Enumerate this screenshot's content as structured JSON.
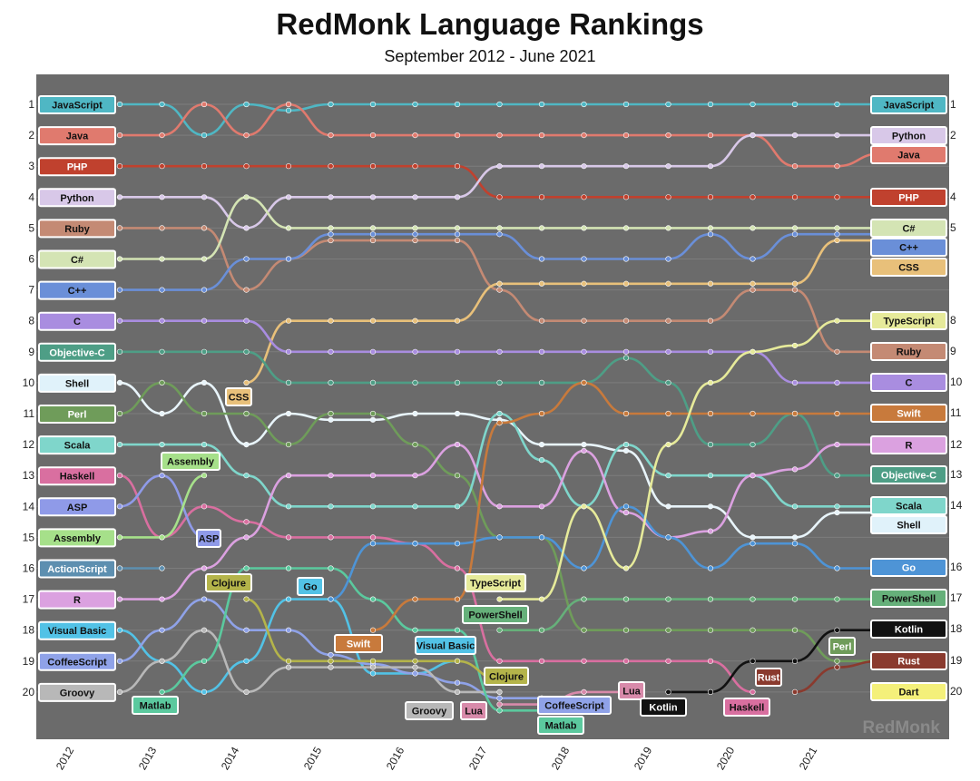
{
  "title": "RedMonk Language Rankings",
  "subtitle": "September 2012 - June 2021",
  "brand": "RedMonk",
  "chart_data": {
    "type": "line",
    "title": "RedMonk Language Rankings",
    "subtitle": "September 2012 - June 2021",
    "x": [
      "2012-09",
      "2013-01",
      "2013-06",
      "2014-01",
      "2014-06",
      "2015-01",
      "2015-06",
      "2016-01",
      "2016-06",
      "2017-01",
      "2017-06",
      "2018-01",
      "2018-06",
      "2019-01",
      "2019-06",
      "2020-01",
      "2020-06",
      "2021-01",
      "2021-06"
    ],
    "x_ticks": [
      "2012",
      "2013",
      "2014",
      "2015",
      "2016",
      "2017",
      "2018",
      "2019",
      "2020",
      "2021"
    ],
    "y_ticks": [
      1,
      2,
      3,
      4,
      5,
      6,
      7,
      8,
      9,
      10,
      11,
      12,
      13,
      14,
      15,
      16,
      17,
      18,
      19,
      20
    ],
    "ylim": [
      1,
      20
    ],
    "y_inverted": true,
    "background": "#6b6b6b",
    "series": [
      {
        "name": "JavaScript",
        "color": "#4fb7c4",
        "values": [
          1,
          1,
          2,
          1,
          1.2,
          1,
          1,
          1,
          1,
          1,
          1,
          1,
          1,
          1,
          1,
          1,
          1,
          1,
          1
        ]
      },
      {
        "name": "Java",
        "color": "#e07a6e",
        "values": [
          2,
          2,
          1,
          2,
          1,
          2,
          2,
          2,
          2,
          2,
          2,
          2,
          2,
          2,
          2,
          2,
          3,
          3,
          2.6
        ]
      },
      {
        "name": "PHP",
        "color": "#c0412e",
        "values": [
          3,
          3,
          3,
          3,
          3,
          3,
          3,
          3,
          3,
          4,
          4,
          4,
          4,
          4,
          4,
          4,
          4,
          4,
          4
        ]
      },
      {
        "name": "Python",
        "color": "#d8c8e8",
        "values": [
          4,
          4,
          4,
          5,
          4,
          4,
          4,
          4,
          4,
          3,
          3,
          3,
          3,
          3,
          3,
          2,
          2,
          2,
          2
        ]
      },
      {
        "name": "Ruby",
        "color": "#c48a74",
        "values": [
          5,
          5,
          5,
          7,
          6,
          5.4,
          5.4,
          5.4,
          5.4,
          7,
          8,
          8,
          8,
          8,
          8,
          7,
          7,
          9,
          9
        ]
      },
      {
        "name": "C#",
        "color": "#d4e4b4",
        "values": [
          6,
          6,
          6,
          4,
          5,
          5,
          5,
          5,
          5,
          5,
          5,
          5,
          5,
          5,
          5,
          5,
          5,
          5,
          5
        ]
      },
      {
        "name": "C++",
        "color": "#6a8fd8",
        "values": [
          7,
          7,
          7,
          6,
          6,
          5.2,
          5.2,
          5.2,
          5.2,
          5.2,
          6,
          6,
          6,
          6,
          5.2,
          6,
          5.2,
          5.2,
          5.2
        ]
      },
      {
        "name": "CSS",
        "color": "#e8c07a",
        "values": [
          null,
          null,
          null,
          10,
          8,
          8,
          8,
          8,
          8,
          6.8,
          6.8,
          6.8,
          6.8,
          6.8,
          6.8,
          6.8,
          6.8,
          5.4,
          5.4
        ]
      },
      {
        "name": "C",
        "color": "#a98de0",
        "values": [
          8,
          8,
          8,
          8,
          9,
          9,
          9,
          9,
          9,
          9,
          9,
          9,
          9,
          9,
          9,
          9,
          10,
          10,
          10
        ]
      },
      {
        "name": "Objective-C",
        "color": "#4e9e86",
        "values": [
          9,
          9,
          9,
          9,
          10,
          10,
          10,
          10,
          10,
          10,
          10,
          10,
          9.2,
          10,
          12,
          12,
          11,
          13,
          13
        ]
      },
      {
        "name": "Shell",
        "color": "#e8f4fa",
        "values": [
          10,
          11,
          10,
          12,
          11,
          11.2,
          11.2,
          11,
          11,
          11.2,
          12,
          12,
          12.2,
          14,
          14,
          15,
          15,
          14.2,
          14.2
        ]
      },
      {
        "name": "Perl",
        "color": "#6f9c5a",
        "values": [
          11,
          10,
          11,
          11,
          12,
          11,
          11,
          12,
          13,
          15,
          15,
          18,
          18,
          18,
          18,
          18,
          18,
          19,
          19
        ]
      },
      {
        "name": "Scala",
        "color": "#7fd6cb",
        "values": [
          12,
          12,
          12,
          13,
          14,
          14,
          14,
          14,
          14,
          11,
          12.5,
          14,
          12,
          13,
          13,
          13,
          14,
          14,
          14
        ]
      },
      {
        "name": "Haskell",
        "color": "#d96fa0",
        "values": [
          13,
          15,
          14,
          14.5,
          15,
          15,
          15,
          15.2,
          16,
          19,
          19,
          19,
          19,
          19,
          19,
          20,
          null,
          null,
          null
        ]
      },
      {
        "name": "ASP",
        "color": "#8f9ae8",
        "values": [
          14,
          13,
          15,
          null,
          null,
          null,
          null,
          null,
          null,
          null,
          null,
          null,
          null,
          null,
          null,
          null,
          null,
          null,
          null
        ]
      },
      {
        "name": "Assembly",
        "color": "#a6e08a",
        "values": [
          15,
          15,
          13,
          null,
          null,
          null,
          null,
          null,
          null,
          null,
          null,
          null,
          null,
          null,
          null,
          null,
          null,
          null,
          null
        ]
      },
      {
        "name": "ActionScript",
        "color": "#5d8fb0",
        "values": [
          16,
          16,
          null,
          null,
          null,
          null,
          null,
          null,
          null,
          null,
          null,
          null,
          null,
          null,
          null,
          null,
          null,
          null,
          null
        ]
      },
      {
        "name": "R",
        "color": "#dba1e0",
        "values": [
          17,
          17,
          16,
          15,
          13,
          13,
          13,
          13,
          12,
          14,
          14,
          12.2,
          14.2,
          15,
          14.8,
          13,
          12.8,
          12,
          12
        ]
      },
      {
        "name": "Visual Basic",
        "color": "#52c2e6",
        "values": [
          18,
          19,
          20,
          19,
          17,
          17,
          19.4,
          19.4,
          19,
          null,
          null,
          null,
          null,
          null,
          null,
          null,
          null,
          null,
          null
        ]
      },
      {
        "name": "CoffeeScript",
        "color": "#8fa2e8",
        "values": [
          19,
          18,
          17,
          18,
          18,
          18.8,
          19.1,
          19.4,
          19.7,
          20.2,
          20.2,
          null,
          null,
          null,
          null,
          null,
          null,
          null,
          null
        ]
      },
      {
        "name": "Groovy",
        "color": "#b8b8b8",
        "values": [
          20,
          19,
          18,
          20,
          19.2,
          19.2,
          19.2,
          19.2,
          20,
          20,
          null,
          null,
          null,
          null,
          null,
          null,
          null,
          null,
          null
        ]
      },
      {
        "name": "Matlab",
        "color": "#5bc99e",
        "values": [
          null,
          20,
          19,
          16,
          16,
          16,
          17,
          18,
          18,
          20.6,
          20.6,
          null,
          null,
          null,
          null,
          null,
          null,
          null,
          null
        ]
      },
      {
        "name": "Clojure",
        "color": "#b4b44a",
        "values": [
          null,
          null,
          null,
          17,
          19,
          19,
          19,
          19,
          19,
          19.6,
          null,
          null,
          null,
          null,
          null,
          null,
          null,
          null,
          null
        ]
      },
      {
        "name": "Go",
        "color": "#4e94d6",
        "values": [
          null,
          null,
          null,
          null,
          null,
          17,
          15.2,
          15.2,
          15.2,
          15,
          15,
          16,
          14,
          15,
          16,
          15.2,
          15.2,
          16,
          16
        ]
      },
      {
        "name": "Swift",
        "color": "#c87a3c",
        "values": [
          null,
          null,
          null,
          null,
          null,
          null,
          18,
          17,
          17,
          11.3,
          11,
          10,
          11,
          11,
          11,
          11,
          11,
          11,
          11
        ]
      },
      {
        "name": "TypeScript",
        "color": "#e6ea9a",
        "values": [
          null,
          null,
          null,
          null,
          null,
          null,
          null,
          null,
          null,
          17,
          17,
          14,
          16,
          12,
          10,
          9,
          8.8,
          8,
          8
        ]
      },
      {
        "name": "PowerShell",
        "color": "#66b07a",
        "values": [
          null,
          null,
          null,
          null,
          null,
          null,
          null,
          null,
          null,
          18,
          18,
          17,
          17,
          17,
          17,
          17,
          17,
          17,
          17
        ]
      },
      {
        "name": "Lua",
        "color": "#d88aaa",
        "values": [
          null,
          null,
          null,
          null,
          null,
          null,
          null,
          null,
          null,
          20.4,
          20.4,
          20,
          20,
          null,
          null,
          null,
          null,
          null,
          null
        ]
      },
      {
        "name": "Kotlin",
        "color": "#111111",
        "values": [
          null,
          null,
          null,
          null,
          null,
          null,
          null,
          null,
          null,
          null,
          null,
          null,
          null,
          20,
          20,
          19,
          19,
          18,
          18
        ]
      },
      {
        "name": "Rust",
        "color": "#8a3a2e",
        "values": [
          null,
          null,
          null,
          null,
          null,
          null,
          null,
          null,
          null,
          null,
          null,
          null,
          null,
          null,
          null,
          null,
          20,
          19.2,
          19
        ]
      },
      {
        "name": "Dart",
        "color": "#f4f07a",
        "values": [
          null,
          null,
          null,
          null,
          null,
          null,
          null,
          null,
          null,
          null,
          null,
          null,
          null,
          null,
          null,
          null,
          null,
          null,
          20
        ]
      }
    ],
    "left_labels": [
      {
        "text": "JavaScript",
        "rank": 1,
        "color": "#4fb7c4"
      },
      {
        "text": "Java",
        "rank": 2,
        "color": "#e07a6e"
      },
      {
        "text": "PHP",
        "rank": 3,
        "color": "#c0412e"
      },
      {
        "text": "Python",
        "rank": 4,
        "color": "#d8c8e8"
      },
      {
        "text": "Ruby",
        "rank": 5,
        "color": "#c48a74"
      },
      {
        "text": "C#",
        "rank": 6,
        "color": "#d4e4b4"
      },
      {
        "text": "C++",
        "rank": 7,
        "color": "#6a8fd8"
      },
      {
        "text": "C",
        "rank": 8,
        "color": "#a98de0"
      },
      {
        "text": "Objective-C",
        "rank": 9,
        "color": "#4e9e86"
      },
      {
        "text": "Shell",
        "rank": 10,
        "color": "#e0f2fa"
      },
      {
        "text": "Perl",
        "rank": 11,
        "color": "#6f9c5a"
      },
      {
        "text": "Scala",
        "rank": 12,
        "color": "#7fd6cb"
      },
      {
        "text": "Haskell",
        "rank": 13,
        "color": "#d96fa0"
      },
      {
        "text": "ASP",
        "rank": 14,
        "color": "#8f9ae8"
      },
      {
        "text": "Assembly",
        "rank": 15,
        "color": "#a6e08a"
      },
      {
        "text": "ActionScript",
        "rank": 16,
        "color": "#5d8fb0"
      },
      {
        "text": "R",
        "rank": 17,
        "color": "#dba1e0"
      },
      {
        "text": "Visual Basic",
        "rank": 18,
        "color": "#52c2e6"
      },
      {
        "text": "CoffeeScript",
        "rank": 19,
        "color": "#8fa2e8"
      },
      {
        "text": "Groovy",
        "rank": 20,
        "color": "#b8b8b8"
      }
    ],
    "right_labels": [
      {
        "text": "JavaScript",
        "color": "#4fb7c4",
        "rank_label": "1"
      },
      {
        "text": "Python",
        "color": "#d8c8e8",
        "rank_label": "2"
      },
      {
        "text": "Java",
        "color": "#e07a6e",
        "rank_label": ""
      },
      {
        "text": "PHP",
        "color": "#c0412e",
        "rank_label": "4"
      },
      {
        "text": "C#",
        "color": "#d4e4b4",
        "rank_label": "5"
      },
      {
        "text": "C++",
        "color": "#6a8fd8",
        "rank_label": ""
      },
      {
        "text": "CSS",
        "color": "#e8c07a",
        "rank_label": ""
      },
      {
        "text": "TypeScript",
        "color": "#e6ea9a",
        "rank_label": "8"
      },
      {
        "text": "Ruby",
        "color": "#c48a74",
        "rank_label": "9"
      },
      {
        "text": "C",
        "color": "#a98de0",
        "rank_label": "10"
      },
      {
        "text": "Swift",
        "color": "#c87a3c",
        "rank_label": "11"
      },
      {
        "text": "R",
        "color": "#dba1e0",
        "rank_label": "12"
      },
      {
        "text": "Objective-C",
        "color": "#4e9e86",
        "rank_label": "13"
      },
      {
        "text": "Scala",
        "color": "#7fd6cb",
        "rank_label": "14"
      },
      {
        "text": "Shell",
        "color": "#e0f2fa",
        "rank_label": ""
      },
      {
        "text": "Go",
        "color": "#4e94d6",
        "rank_label": "16"
      },
      {
        "text": "PowerShell",
        "color": "#66b07a",
        "rank_label": "17"
      },
      {
        "text": "Kotlin",
        "color": "#111111",
        "rank_label": "18"
      },
      {
        "text": "Rust",
        "color": "#8a3a2e",
        "rank_label": "19"
      },
      {
        "text": "Dart",
        "color": "#f4f07a",
        "rank_label": "20"
      }
    ],
    "annotations": [
      {
        "text": "Assembly",
        "color": "#a6e08a"
      },
      {
        "text": "CSS",
        "color": "#e8c07a"
      },
      {
        "text": "ASP",
        "color": "#8f9ae8"
      },
      {
        "text": "Clojure",
        "color": "#b4b44a"
      },
      {
        "text": "Go",
        "color": "#52c2e6"
      },
      {
        "text": "Swift",
        "color": "#c87a3c"
      },
      {
        "text": "Visual Basic",
        "color": "#52c2e6"
      },
      {
        "text": "TypeScript",
        "color": "#e6ea9a"
      },
      {
        "text": "PowerShell",
        "color": "#66b07a"
      },
      {
        "text": "Clojure",
        "color": "#b4b44a"
      },
      {
        "text": "Matlab",
        "color": "#5bc99e"
      },
      {
        "text": "Groovy",
        "color": "#b8b8b8"
      },
      {
        "text": "Lua",
        "color": "#d88aaa"
      },
      {
        "text": "CoffeeScript",
        "color": "#8fa2e8"
      },
      {
        "text": "Matlab",
        "color": "#5bc99e"
      },
      {
        "text": "Lua",
        "color": "#d88aaa"
      },
      {
        "text": "Kotlin",
        "color": "#111111"
      },
      {
        "text": "Haskell",
        "color": "#d96fa0"
      },
      {
        "text": "Rust",
        "color": "#8a3a2e"
      },
      {
        "text": "Perl",
        "color": "#6f9c5a"
      }
    ]
  }
}
